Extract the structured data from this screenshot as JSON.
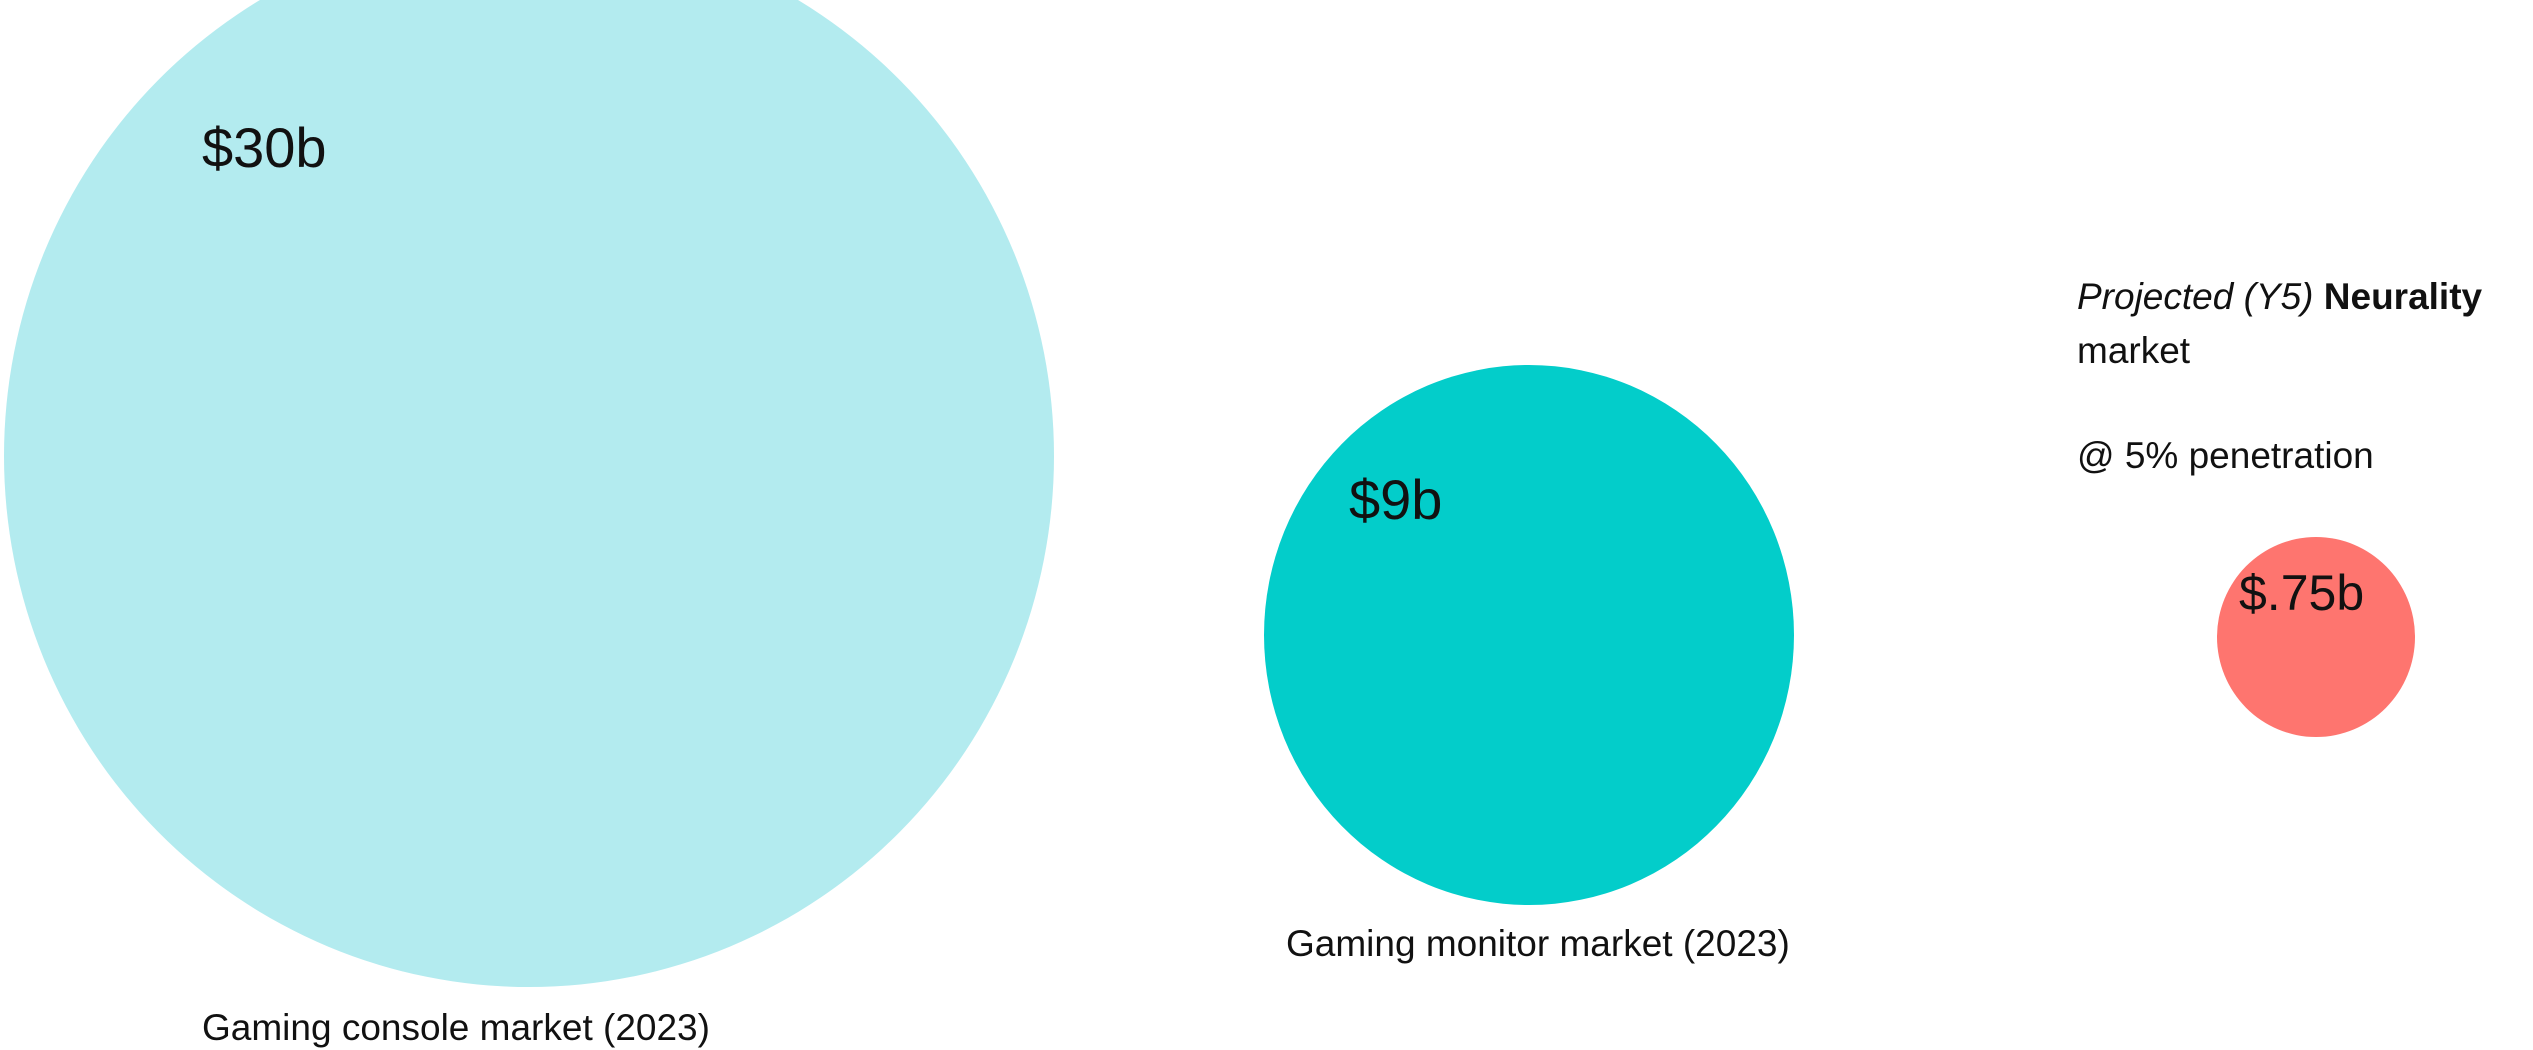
{
  "colors": {
    "large_circle": "#b3ebef",
    "medium_circle": "#03cdca",
    "small_circle": "#fe756f",
    "text": "#111111"
  },
  "markets": [
    {
      "value_label": "$30b",
      "caption": "Gaming console market (2023)"
    },
    {
      "value_label": "$9b",
      "caption": "Gaming monitor market (2023)"
    },
    {
      "value_label": "$.75b",
      "note": {
        "italic_part": "Projected (Y5)",
        "bold_part": "Neurality",
        "rest": "market",
        "line2": "@ 5% penetration"
      }
    }
  ]
}
